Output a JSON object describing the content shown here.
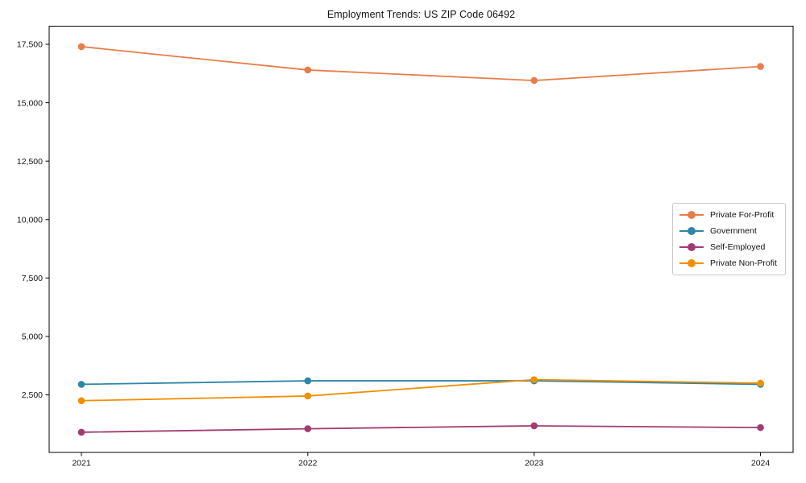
{
  "chart_data": {
    "type": "line",
    "title": "Employment Trends: US ZIP Code 06492",
    "x": [
      2021,
      2022,
      2023,
      2024
    ],
    "x_tick_labels": [
      "2021",
      "2022",
      "2023",
      "2024"
    ],
    "y_ticks": [
      2500,
      5000,
      7500,
      10000,
      12500,
      15000,
      17500
    ],
    "y_tick_labels": [
      "2,500",
      "5,000",
      "7,500",
      "10,000",
      "12,500",
      "15,000",
      "17,500"
    ],
    "ylim": [
      -70,
      18300
    ],
    "grid": false,
    "legend_position": "center right",
    "series": [
      {
        "name": "Private For-Profit",
        "color": "#E87D4A",
        "values": [
          17400,
          16400,
          15950,
          16550
        ]
      },
      {
        "name": "Government",
        "color": "#2E86AB",
        "values": [
          2950,
          3100,
          3100,
          2950
        ]
      },
      {
        "name": "Self-Employed",
        "color": "#A23B72",
        "values": [
          900,
          1050,
          1175,
          1100
        ]
      },
      {
        "name": "Private Non-Profit",
        "color": "#F18F01",
        "values": [
          2250,
          2450,
          3150,
          3000
        ]
      }
    ],
    "axis_color": "#000000",
    "background_color": "#ffffff"
  }
}
